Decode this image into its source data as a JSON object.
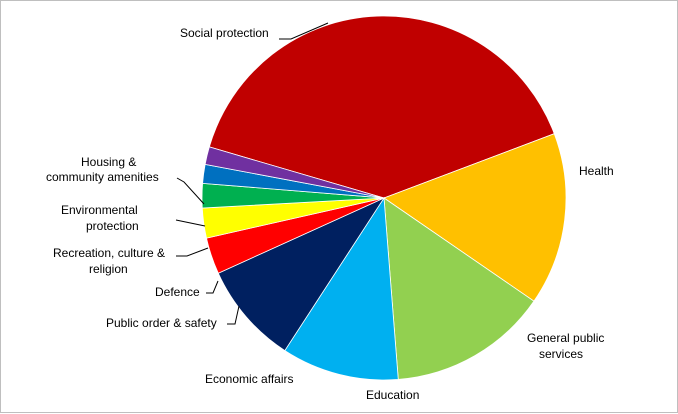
{
  "chart_data": {
    "type": "pie",
    "title": "",
    "slices": [
      {
        "label": "Social protection",
        "value": 40.4,
        "color": "#c00000"
      },
      {
        "label": "Health",
        "value": 15.6,
        "color": "#ffc000"
      },
      {
        "label": "General public services",
        "value": 14.4,
        "color": "#92d050"
      },
      {
        "label": "Education",
        "value": 10.6,
        "color": "#00b0f0"
      },
      {
        "label": "Economic affairs",
        "value": 9.2,
        "color": "#002060"
      },
      {
        "label": "Public order & safety",
        "value": 3.3,
        "color": "#ff0000"
      },
      {
        "label": "Defence",
        "value": 2.7,
        "color": "#ffff00"
      },
      {
        "label": "Recreation, culture & religion",
        "value": 2.2,
        "color": "#00b050"
      },
      {
        "label": "Environmental protection",
        "value": 1.7,
        "color": "#0070c0"
      },
      {
        "label": "Housing & community amenities",
        "value": 1.6,
        "color": "#7030a0"
      }
    ],
    "legend": "none (labels beside slices with leader lines)"
  }
}
